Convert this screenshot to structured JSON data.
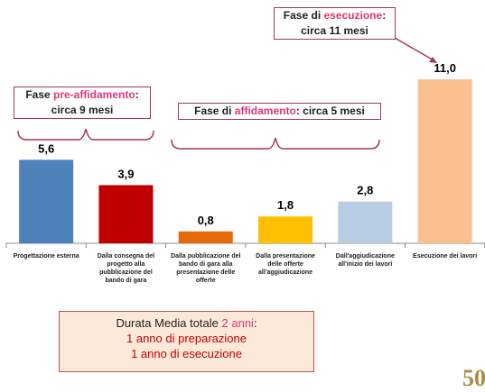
{
  "chart_data": {
    "type": "bar",
    "categories": [
      "Progettazione esterna",
      "Dalla consegna del progetto alla pubblicazione del bando di gara",
      "Dalla pubblicazione del bando di gara alla presentazione delle offerte",
      "Dalla presentazione delle offerte all'aggiudicazione",
      "Dall'aggiudicazione all'inizio dei lavori",
      "Esecuzione dei lavori"
    ],
    "values": [
      5.6,
      3.9,
      0.8,
      1.8,
      2.8,
      11.0
    ],
    "value_labels": [
      "5,6",
      "3,9",
      "0,8",
      "1,8",
      "2,8",
      "11,0"
    ],
    "colors": [
      "#4f81bd",
      "#c00000",
      "#e36c09",
      "#ffc000",
      "#b8cce4",
      "#fac090"
    ],
    "phases": [
      {
        "text": [
          "Fase ",
          "pre-affidamento",
          ":"
        ],
        "subtext": "circa 9 mesi"
      },
      {
        "text": [
          "Fase di ",
          "affidamento",
          ": circa 5 mesi"
        ]
      },
      {
        "text": [
          "Fase di ",
          "esecuzione",
          ":"
        ],
        "subtext": "circa 11 mesi"
      }
    ],
    "summary": {
      "title": [
        "Durata Media totale ",
        "2 anni",
        ":"
      ],
      "lines": [
        "1 anno di preparazione",
        "1 anno di esecuzione"
      ]
    },
    "logo": "50"
  }
}
